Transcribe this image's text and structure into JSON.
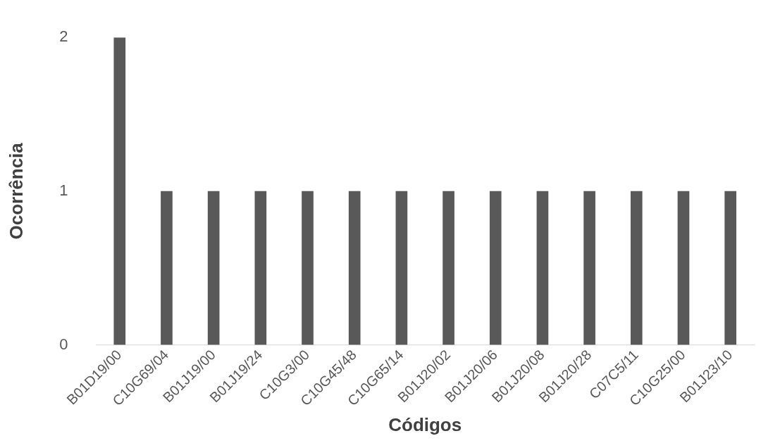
{
  "chart_data": {
    "type": "bar",
    "xlabel": "Códigos",
    "ylabel": "Ocorrência",
    "categories": [
      "B01D19/00",
      "C10G69/04",
      "B01J19/00",
      "B01J19/24",
      "C10G3/00",
      "C10G45/48",
      "C10G65/14",
      "B01J20/02",
      "B01J20/06",
      "B01J20/08",
      "B01J20/28",
      "C07C5/11",
      "C10G25/00",
      "B01J23/10"
    ],
    "values": [
      2,
      1,
      1,
      1,
      1,
      1,
      1,
      1,
      1,
      1,
      1,
      1,
      1,
      1
    ],
    "color": "#595959",
    "ylim": [
      0,
      2
    ],
    "yticks": [
      0,
      1,
      2
    ],
    "grid": false,
    "legend": false
  }
}
